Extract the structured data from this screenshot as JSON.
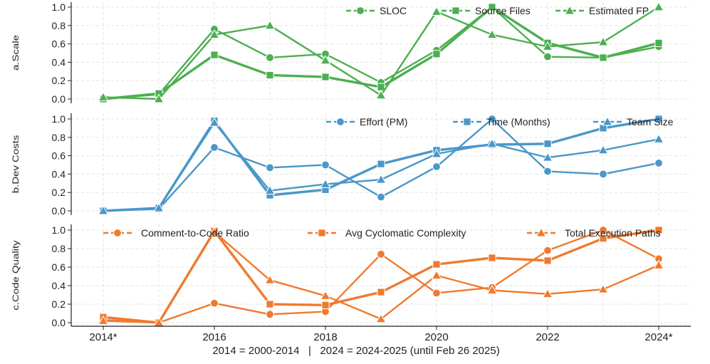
{
  "chart_data": {
    "type": "line",
    "x": [
      "2014*",
      "2015",
      "2016",
      "2017",
      "2018",
      "2019",
      "2020",
      "2021",
      "2022",
      "2023",
      "2024*"
    ],
    "x_tick_labels": [
      "2014*",
      "2016",
      "2018",
      "2020",
      "2022",
      "2024*"
    ],
    "x_tick_indices": [
      0,
      2,
      4,
      6,
      8,
      10
    ],
    "footnote": "2014 = 2000-2014   |   2024 = 2024-2025 (until Feb 26 2025)",
    "y_ticks": [
      "0.0",
      "0.2",
      "0.4",
      "0.6",
      "0.8",
      "1.0"
    ],
    "ylim": [
      0,
      1
    ],
    "grid": true,
    "panels": [
      {
        "ylabel": "a.Scale",
        "color": "#4caf50",
        "series": [
          {
            "name": "SLOC",
            "marker": "circle",
            "values": [
              0.0,
              0.05,
              0.76,
              0.45,
              0.49,
              0.18,
              0.53,
              1.0,
              0.46,
              0.45,
              0.57
            ]
          },
          {
            "name": "Source Files",
            "marker": "square",
            "values": [
              0.0,
              0.06,
              0.48,
              0.26,
              0.24,
              0.13,
              0.49,
              1.0,
              0.61,
              0.45,
              0.61
            ]
          },
          {
            "name": "Estimated FP",
            "marker": "triangle",
            "values": [
              0.02,
              0.0,
              0.7,
              0.8,
              0.42,
              0.04,
              0.95,
              0.7,
              0.57,
              0.62,
              1.0
            ]
          }
        ]
      },
      {
        "ylabel": "b.Dev Costs",
        "color": "#4a97c9",
        "series": [
          {
            "name": "Effort (PM)",
            "marker": "circle",
            "values": [
              0.0,
              0.02,
              0.69,
              0.47,
              0.5,
              0.15,
              0.48,
              1.0,
              0.43,
              0.4,
              0.52
            ]
          },
          {
            "name": "Time (Months)",
            "marker": "square",
            "values": [
              0.0,
              0.03,
              0.98,
              0.17,
              0.23,
              0.51,
              0.66,
              0.72,
              0.73,
              0.9,
              1.0
            ]
          },
          {
            "name": "Team Size",
            "marker": "triangle",
            "values": [
              0.0,
              0.03,
              0.96,
              0.22,
              0.29,
              0.34,
              0.62,
              0.73,
              0.58,
              0.66,
              0.78
            ]
          }
        ]
      },
      {
        "ylabel": "c.Code Quality",
        "color": "#ef7a2f",
        "series": [
          {
            "name": "Comment-to-Code Ratio",
            "marker": "circle",
            "values": [
              0.03,
              0.0,
              0.21,
              0.09,
              0.12,
              0.74,
              0.32,
              0.38,
              0.78,
              1.0,
              0.69
            ]
          },
          {
            "name": "Avg Cyclomatic Complexity",
            "marker": "square",
            "values": [
              0.06,
              0.0,
              0.99,
              0.2,
              0.19,
              0.33,
              0.63,
              0.7,
              0.67,
              0.91,
              1.0
            ]
          },
          {
            "name": "Total Execution Paths",
            "marker": "triangle",
            "values": [
              0.02,
              0.0,
              0.98,
              0.46,
              0.29,
              0.04,
              0.51,
              0.35,
              0.31,
              0.36,
              0.62
            ]
          }
        ]
      }
    ]
  }
}
